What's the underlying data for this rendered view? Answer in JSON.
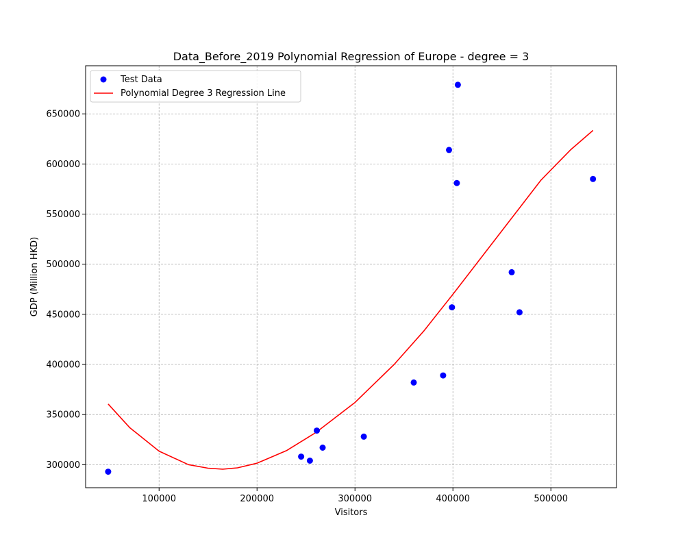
{
  "chart_data": {
    "type": "scatter",
    "title": "Data_Before_2019 Polynomial Regression of Europe - degree = 3",
    "xlabel": "Visitors",
    "ylabel": "GDP (Million HKD)",
    "xlim": [
      25000,
      567000
    ],
    "ylim": [
      277000,
      698000
    ],
    "x_ticks": [
      100000,
      200000,
      300000,
      400000,
      500000
    ],
    "y_ticks": [
      300000,
      350000,
      400000,
      450000,
      500000,
      550000,
      600000,
      650000
    ],
    "grid": true,
    "legend_position": "top-left",
    "series": [
      {
        "name": "Test Data",
        "kind": "scatter",
        "color": "#0000ff",
        "points": [
          {
            "x": 48000,
            "y": 293000
          },
          {
            "x": 245000,
            "y": 308000
          },
          {
            "x": 254000,
            "y": 304000
          },
          {
            "x": 261000,
            "y": 334000
          },
          {
            "x": 267000,
            "y": 317000
          },
          {
            "x": 309000,
            "y": 328000
          },
          {
            "x": 360000,
            "y": 382000
          },
          {
            "x": 390000,
            "y": 389000
          },
          {
            "x": 396000,
            "y": 614000
          },
          {
            "x": 399000,
            "y": 457000
          },
          {
            "x": 404000,
            "y": 581000
          },
          {
            "x": 405000,
            "y": 679000
          },
          {
            "x": 460000,
            "y": 492000
          },
          {
            "x": 468000,
            "y": 452000
          },
          {
            "x": 543000,
            "y": 585000
          }
        ]
      },
      {
        "name": "Polynomial Degree 3 Regression Line",
        "kind": "line",
        "color": "#ff0000",
        "points": [
          {
            "x": 48000,
            "y": 360500
          },
          {
            "x": 70000,
            "y": 337000
          },
          {
            "x": 100000,
            "y": 313500
          },
          {
            "x": 130000,
            "y": 300000
          },
          {
            "x": 150000,
            "y": 296500
          },
          {
            "x": 165000,
            "y": 295500
          },
          {
            "x": 180000,
            "y": 296800
          },
          {
            "x": 200000,
            "y": 301500
          },
          {
            "x": 230000,
            "y": 314000
          },
          {
            "x": 260000,
            "y": 332000
          },
          {
            "x": 300000,
            "y": 362000
          },
          {
            "x": 340000,
            "y": 400000
          },
          {
            "x": 370000,
            "y": 433000
          },
          {
            "x": 400000,
            "y": 470000
          },
          {
            "x": 430000,
            "y": 508000
          },
          {
            "x": 460000,
            "y": 546000
          },
          {
            "x": 490000,
            "y": 584000
          },
          {
            "x": 520000,
            "y": 614000
          },
          {
            "x": 543000,
            "y": 633500
          }
        ]
      }
    ]
  }
}
